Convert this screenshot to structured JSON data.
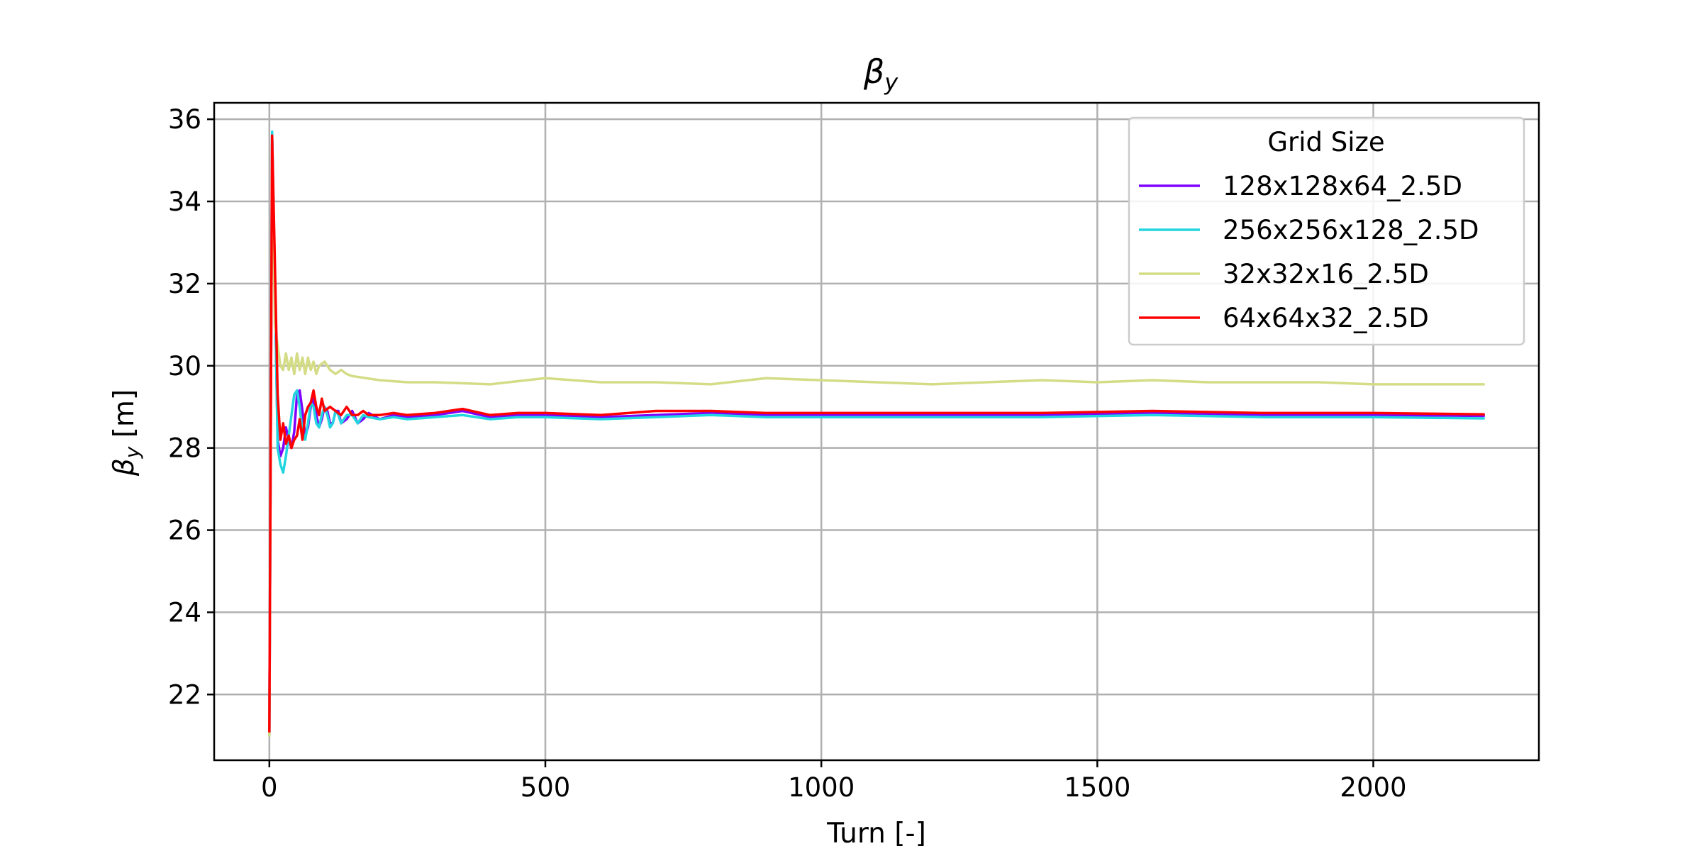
{
  "chart_data": {
    "type": "line",
    "title_main": "β",
    "title_sub": "y",
    "xlabel": "Turn [-]",
    "ylabel_main": "β",
    "ylabel_sub": "y",
    "ylabel_unit": " [m]",
    "xlim": [
      -100,
      2300
    ],
    "ylim": [
      20.4,
      36.4
    ],
    "xticks": [
      0,
      500,
      1000,
      1500,
      2000
    ],
    "yticks": [
      22,
      24,
      26,
      28,
      30,
      32,
      34,
      36
    ],
    "grid": true,
    "legend": {
      "title": "Grid Size",
      "placement": "top-right"
    },
    "series": [
      {
        "name": "128x128x64_2.5D",
        "color": "#7f00ff",
        "points": [
          [
            0,
            21.0
          ],
          [
            5,
            35.6
          ],
          [
            10,
            32.0
          ],
          [
            15,
            28.2
          ],
          [
            20,
            27.8
          ],
          [
            25,
            28.0
          ],
          [
            30,
            28.5
          ],
          [
            35,
            28.2
          ],
          [
            40,
            28.0
          ],
          [
            45,
            28.4
          ],
          [
            50,
            29.3
          ],
          [
            55,
            29.4
          ],
          [
            60,
            28.9
          ],
          [
            65,
            28.3
          ],
          [
            70,
            28.5
          ],
          [
            75,
            29.0
          ],
          [
            80,
            29.2
          ],
          [
            85,
            28.8
          ],
          [
            90,
            28.5
          ],
          [
            95,
            28.7
          ],
          [
            100,
            29.0
          ],
          [
            105,
            28.9
          ],
          [
            110,
            28.6
          ],
          [
            115,
            28.6
          ],
          [
            120,
            28.9
          ],
          [
            125,
            28.9
          ],
          [
            130,
            28.6
          ],
          [
            140,
            28.7
          ],
          [
            150,
            28.9
          ],
          [
            160,
            28.6
          ],
          [
            170,
            28.7
          ],
          [
            180,
            28.85
          ],
          [
            200,
            28.7
          ],
          [
            225,
            28.8
          ],
          [
            250,
            28.75
          ],
          [
            300,
            28.8
          ],
          [
            350,
            28.9
          ],
          [
            400,
            28.75
          ],
          [
            450,
            28.8
          ],
          [
            500,
            28.8
          ],
          [
            600,
            28.75
          ],
          [
            700,
            28.8
          ],
          [
            800,
            28.85
          ],
          [
            900,
            28.8
          ],
          [
            1000,
            28.8
          ],
          [
            1200,
            28.8
          ],
          [
            1400,
            28.8
          ],
          [
            1600,
            28.85
          ],
          [
            1800,
            28.8
          ],
          [
            2000,
            28.8
          ],
          [
            2200,
            28.78
          ]
        ]
      },
      {
        "name": "256x256x128_2.5D",
        "color": "#22d6e0",
        "points": [
          [
            0,
            21.0
          ],
          [
            5,
            35.7
          ],
          [
            10,
            32.0
          ],
          [
            15,
            28.0
          ],
          [
            20,
            27.6
          ],
          [
            25,
            27.4
          ],
          [
            30,
            27.8
          ],
          [
            35,
            28.3
          ],
          [
            40,
            28.8
          ],
          [
            45,
            29.3
          ],
          [
            50,
            29.4
          ],
          [
            55,
            29.0
          ],
          [
            60,
            28.4
          ],
          [
            65,
            28.2
          ],
          [
            70,
            28.6
          ],
          [
            75,
            29.1
          ],
          [
            80,
            29.0
          ],
          [
            85,
            28.6
          ],
          [
            90,
            28.5
          ],
          [
            95,
            28.8
          ],
          [
            100,
            29.0
          ],
          [
            105,
            28.8
          ],
          [
            110,
            28.5
          ],
          [
            115,
            28.6
          ],
          [
            120,
            28.9
          ],
          [
            125,
            28.8
          ],
          [
            130,
            28.6
          ],
          [
            140,
            28.8
          ],
          [
            150,
            28.8
          ],
          [
            160,
            28.6
          ],
          [
            170,
            28.8
          ],
          [
            180,
            28.75
          ],
          [
            200,
            28.7
          ],
          [
            225,
            28.75
          ],
          [
            250,
            28.7
          ],
          [
            300,
            28.75
          ],
          [
            350,
            28.8
          ],
          [
            400,
            28.7
          ],
          [
            450,
            28.75
          ],
          [
            500,
            28.75
          ],
          [
            600,
            28.7
          ],
          [
            700,
            28.75
          ],
          [
            800,
            28.8
          ],
          [
            900,
            28.75
          ],
          [
            1000,
            28.75
          ],
          [
            1200,
            28.75
          ],
          [
            1400,
            28.75
          ],
          [
            1600,
            28.8
          ],
          [
            1800,
            28.75
          ],
          [
            2000,
            28.75
          ],
          [
            2200,
            28.72
          ]
        ]
      },
      {
        "name": "32x32x16_2.5D",
        "color": "#d4dc86",
        "points": [
          [
            0,
            21.0
          ],
          [
            5,
            35.4
          ],
          [
            10,
            31.0
          ],
          [
            15,
            30.5
          ],
          [
            20,
            30.0
          ],
          [
            25,
            29.9
          ],
          [
            30,
            30.3
          ],
          [
            35,
            29.9
          ],
          [
            40,
            30.2
          ],
          [
            45,
            29.8
          ],
          [
            50,
            30.3
          ],
          [
            55,
            29.9
          ],
          [
            60,
            30.2
          ],
          [
            65,
            29.8
          ],
          [
            70,
            30.2
          ],
          [
            75,
            29.9
          ],
          [
            80,
            30.1
          ],
          [
            85,
            29.8
          ],
          [
            90,
            30.0
          ],
          [
            100,
            30.1
          ],
          [
            110,
            29.9
          ],
          [
            120,
            29.8
          ],
          [
            130,
            29.9
          ],
          [
            140,
            29.8
          ],
          [
            150,
            29.75
          ],
          [
            175,
            29.7
          ],
          [
            200,
            29.65
          ],
          [
            250,
            29.6
          ],
          [
            300,
            29.6
          ],
          [
            400,
            29.55
          ],
          [
            500,
            29.7
          ],
          [
            600,
            29.6
          ],
          [
            700,
            29.6
          ],
          [
            800,
            29.55
          ],
          [
            900,
            29.7
          ],
          [
            1000,
            29.65
          ],
          [
            1100,
            29.6
          ],
          [
            1200,
            29.55
          ],
          [
            1300,
            29.6
          ],
          [
            1400,
            29.65
          ],
          [
            1500,
            29.6
          ],
          [
            1600,
            29.65
          ],
          [
            1700,
            29.6
          ],
          [
            1800,
            29.6
          ],
          [
            1900,
            29.6
          ],
          [
            2000,
            29.55
          ],
          [
            2100,
            29.55
          ],
          [
            2200,
            29.55
          ]
        ]
      },
      {
        "name": "64x64x32_2.5D",
        "color": "#ff0000",
        "points": [
          [
            0,
            21.1
          ],
          [
            5,
            35.6
          ],
          [
            10,
            32.5
          ],
          [
            15,
            29.3
          ],
          [
            20,
            28.2
          ],
          [
            25,
            28.6
          ],
          [
            30,
            28.1
          ],
          [
            35,
            28.3
          ],
          [
            40,
            28.0
          ],
          [
            45,
            28.2
          ],
          [
            50,
            28.3
          ],
          [
            55,
            28.7
          ],
          [
            60,
            28.2
          ],
          [
            65,
            28.8
          ],
          [
            70,
            29.0
          ],
          [
            75,
            29.1
          ],
          [
            80,
            29.4
          ],
          [
            85,
            29.0
          ],
          [
            90,
            28.8
          ],
          [
            95,
            29.2
          ],
          [
            100,
            28.9
          ],
          [
            110,
            29.0
          ],
          [
            120,
            28.9
          ],
          [
            130,
            28.8
          ],
          [
            140,
            29.0
          ],
          [
            150,
            28.8
          ],
          [
            160,
            28.8
          ],
          [
            170,
            28.9
          ],
          [
            180,
            28.8
          ],
          [
            200,
            28.8
          ],
          [
            225,
            28.85
          ],
          [
            250,
            28.8
          ],
          [
            300,
            28.85
          ],
          [
            350,
            28.95
          ],
          [
            400,
            28.8
          ],
          [
            450,
            28.85
          ],
          [
            500,
            28.85
          ],
          [
            600,
            28.8
          ],
          [
            700,
            28.9
          ],
          [
            800,
            28.9
          ],
          [
            900,
            28.85
          ],
          [
            1000,
            28.85
          ],
          [
            1200,
            28.85
          ],
          [
            1400,
            28.85
          ],
          [
            1600,
            28.9
          ],
          [
            1800,
            28.85
          ],
          [
            2000,
            28.85
          ],
          [
            2200,
            28.82
          ]
        ]
      }
    ]
  }
}
